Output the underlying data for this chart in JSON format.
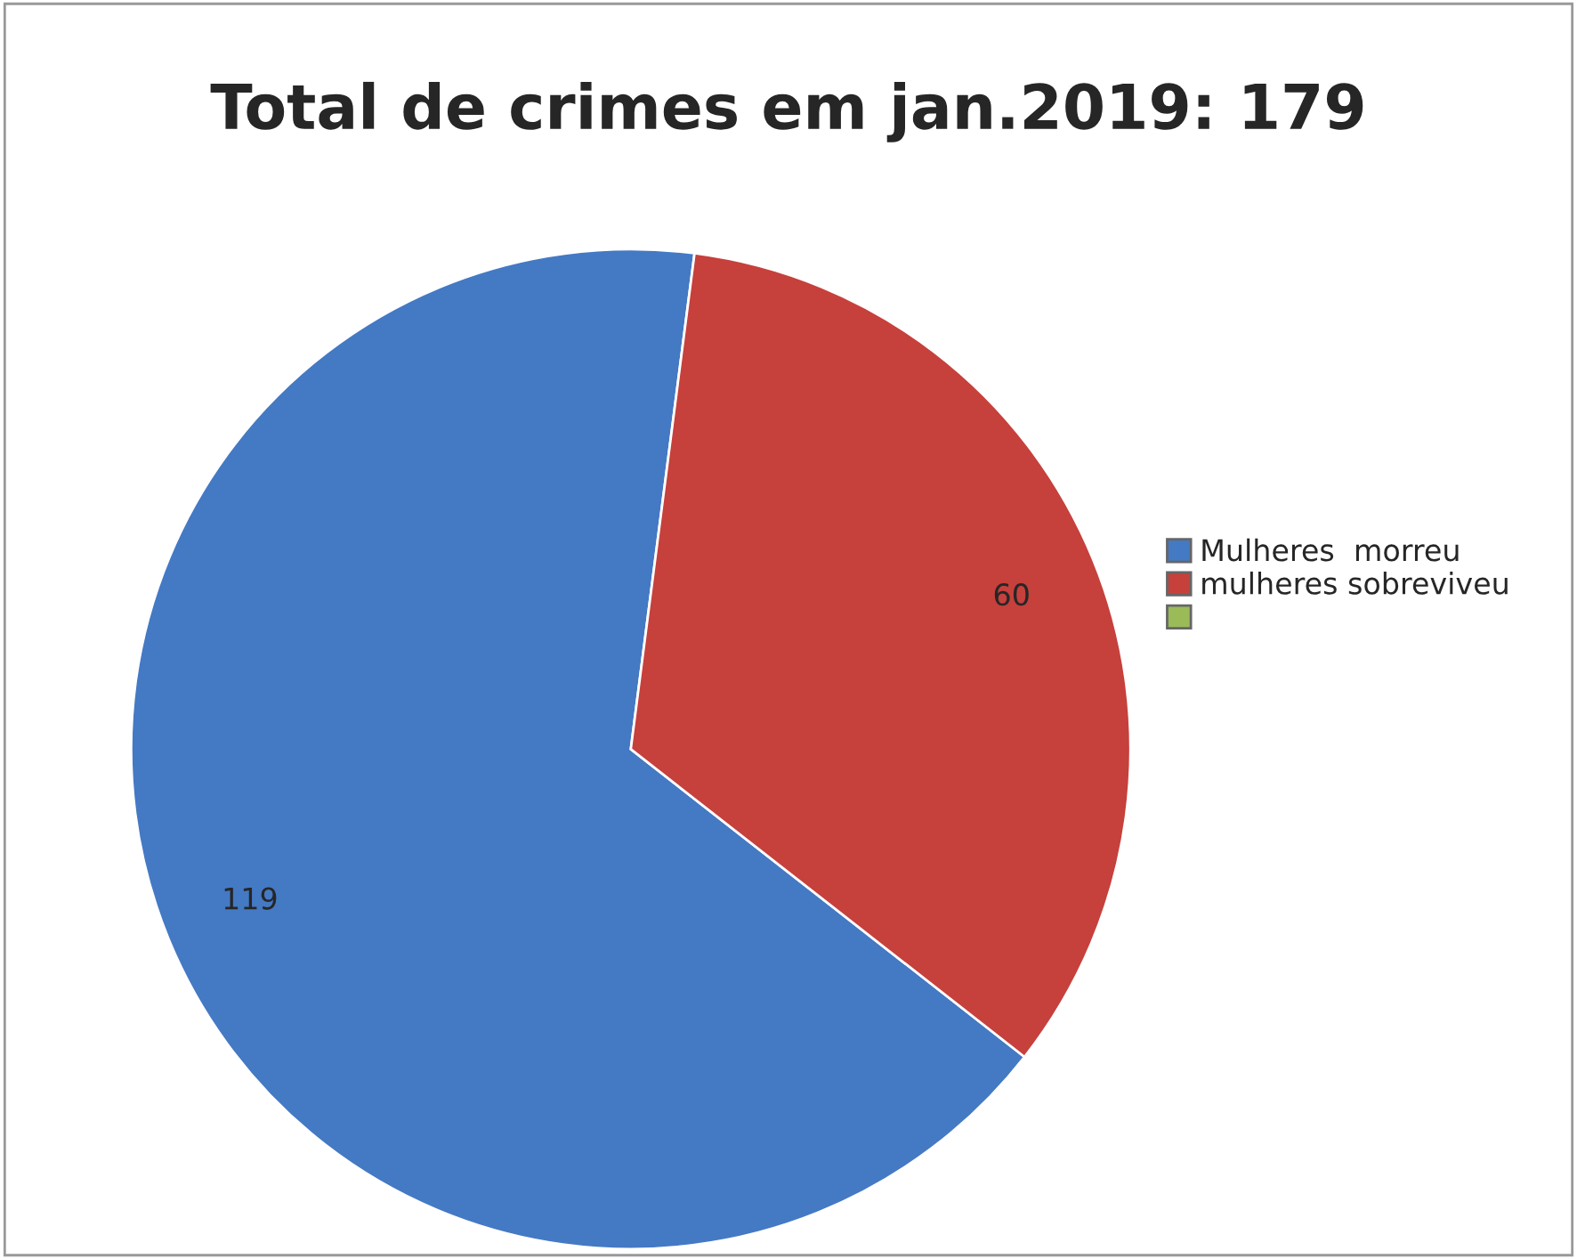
{
  "chart_data": {
    "type": "pie",
    "title": "Total de crimes em jan.2019: 179",
    "categories": [
      "Mulheres  morreu",
      "mulheres sobreviveu"
    ],
    "values": [
      119,
      60
    ],
    "colors": [
      "#4479c4",
      "#c6403c"
    ],
    "value_labels": [
      "119",
      "60"
    ],
    "legend": "right"
  }
}
